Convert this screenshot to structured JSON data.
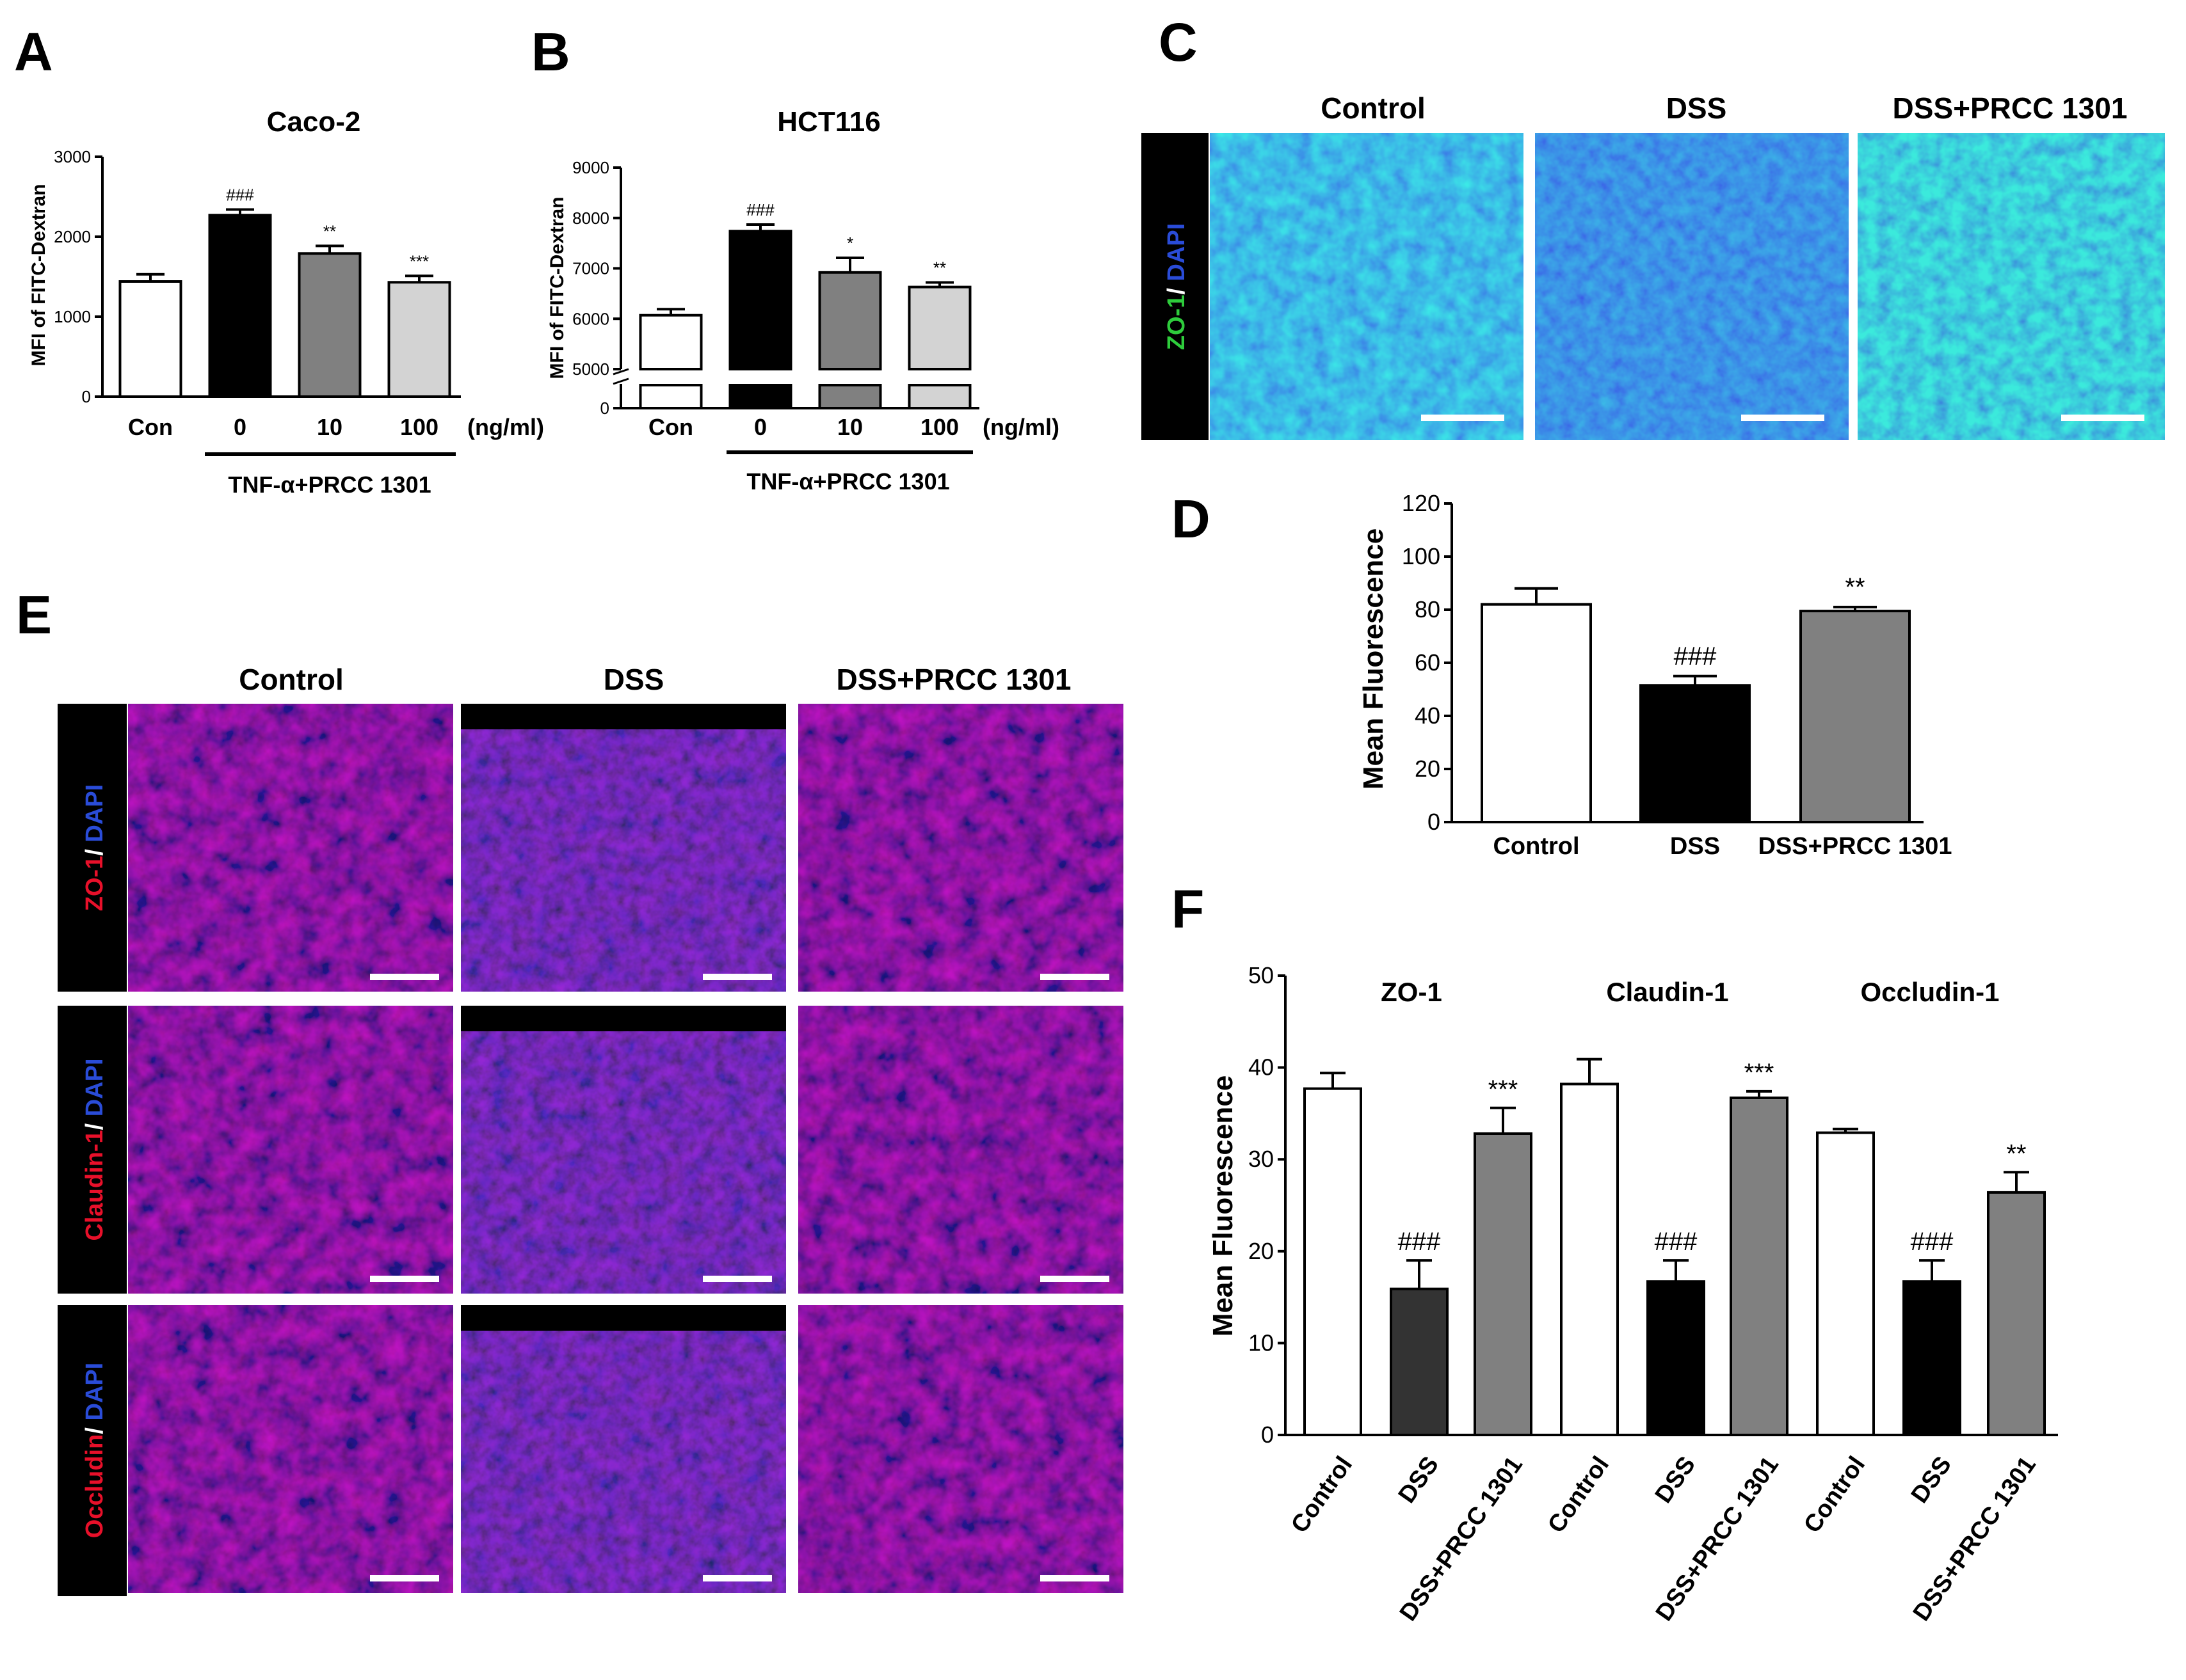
{
  "panels": {
    "A": "A",
    "B": "B",
    "C": "C",
    "D": "D",
    "E": "E",
    "F": "F"
  },
  "colors": {
    "green": "#2ecc3c",
    "blue": "#2a4cd8",
    "red": "#e8102a",
    "black_bar": "#000000",
    "dark_bar": "#333333",
    "gray_bar": "#808080",
    "light_bar": "#d3d3d3",
    "white_bar": "#ffffff"
  },
  "icons": {
    "micrograph": "fluorescence-micrograph",
    "scale_bar": "scale-bar"
  },
  "panel_c": {
    "columns": [
      "Control",
      "DSS",
      "DSS+PRCC 1301"
    ],
    "side_label": {
      "part1": "ZO-1",
      "sep": "/ ",
      "part2": "DAPI"
    },
    "colors": [
      "green",
      "blue"
    ]
  },
  "panel_e": {
    "columns": [
      "Control",
      "DSS",
      "DSS+PRCC 1301"
    ],
    "rows": [
      {
        "part1": "ZO-1",
        "sep": "/ ",
        "part2": "DAPI"
      },
      {
        "part1": "Claudin-1",
        "sep": "/ ",
        "part2": "DAPI"
      },
      {
        "part1": "Occludin",
        "sep": "/ ",
        "part2": "DAPI"
      }
    ]
  },
  "chart_data": [
    {
      "panel": "A",
      "type": "bar",
      "title": "Caco-2",
      "ylabel": "MFI of FITC-Dextran",
      "ylim": [
        0,
        3000
      ],
      "yticks": [
        "0",
        "1000",
        "2000",
        "3000"
      ],
      "categories": [
        "Con",
        "0",
        "10",
        "100"
      ],
      "unit": "(ng/ml)",
      "group_label": "TNF-α+PRCC 1301",
      "values": [
        1440,
        2270,
        1790,
        1430
      ],
      "errors": [
        90,
        70,
        95,
        80
      ],
      "bar_colors": [
        "#ffffff",
        "#000000",
        "#808080",
        "#d3d3d3"
      ],
      "annotations": [
        "",
        "###",
        "**",
        "***"
      ]
    },
    {
      "panel": "B",
      "type": "bar",
      "title": "HCT116",
      "ylabel": "MFI of FITC-Dextran",
      "ylim": [
        0,
        9000
      ],
      "axis_break": [
        0,
        5000
      ],
      "yticks": [
        "0",
        "5000",
        "6000",
        "7000",
        "8000",
        "9000"
      ],
      "categories": [
        "Con",
        "0",
        "10",
        "100"
      ],
      "unit": "(ng/ml)",
      "group_label": "TNF-α+PRCC 1301",
      "values": [
        6070,
        7740,
        6920,
        6630
      ],
      "errors": [
        120,
        130,
        290,
        90
      ],
      "bar_colors": [
        "#ffffff",
        "#000000",
        "#808080",
        "#d3d3d3"
      ],
      "annotations": [
        "",
        "###",
        "*",
        "**"
      ]
    },
    {
      "panel": "D",
      "type": "bar",
      "title": "",
      "ylabel": "Mean Fluorescence",
      "ylim": [
        0,
        120
      ],
      "yticks": [
        "0",
        "20",
        "40",
        "60",
        "80",
        "100",
        "120"
      ],
      "categories": [
        "Control",
        "DSS",
        "DSS+PRCC 1301"
      ],
      "values": [
        82,
        51.5,
        79.5
      ],
      "errors": [
        6,
        3.5,
        1.5
      ],
      "bar_colors": [
        "#ffffff",
        "#000000",
        "#808080"
      ],
      "annotations": [
        "",
        "###",
        "**"
      ]
    },
    {
      "panel": "F",
      "type": "bar",
      "title": "",
      "ylabel": "Mean Fluorescence",
      "ylim": [
        0,
        50
      ],
      "yticks": [
        "0",
        "10",
        "20",
        "30",
        "40",
        "50"
      ],
      "groups": [
        "ZO-1",
        "Claudin-1",
        "Occludin-1"
      ],
      "categories": [
        "Control",
        "DSS",
        "DSS+PRCC 1301",
        "Control",
        "DSS",
        "DSS+PRCC 1301",
        "Control",
        "DSS",
        "DSS+PRCC 1301"
      ],
      "values": [
        37.7,
        15.9,
        32.8,
        38.2,
        16.7,
        36.7,
        32.9,
        16.7,
        26.4
      ],
      "errors": [
        1.7,
        3.1,
        2.8,
        2.7,
        2.3,
        0.7,
        0.4,
        2.3,
        2.2
      ],
      "bar_colors": [
        "#ffffff",
        "#333333",
        "#808080",
        "#ffffff",
        "#000000",
        "#808080",
        "#ffffff",
        "#000000",
        "#808080"
      ],
      "annotations": [
        "",
        "###",
        "***",
        "",
        "###",
        "***",
        "",
        "###",
        "**"
      ]
    }
  ]
}
